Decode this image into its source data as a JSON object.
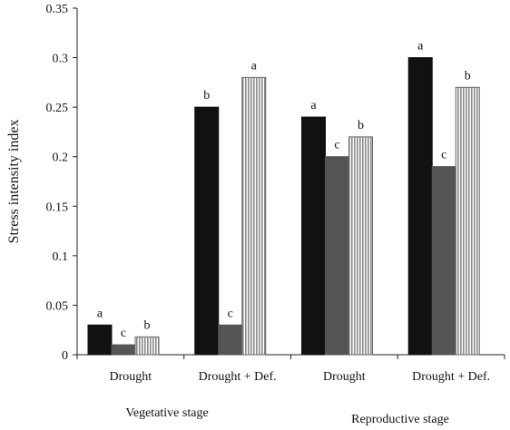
{
  "chart_data": {
    "type": "bar",
    "ylabel": "Stress  intensity index",
    "xlabel": "",
    "ylim": [
      0,
      0.35
    ],
    "yticks": [
      "0",
      "0.05",
      "0.1",
      "0.15",
      "0.2",
      "0.25",
      "0.3",
      "0.35"
    ],
    "grid": false,
    "legend": "none",
    "categories": [
      "Drought",
      "Drought + Def.",
      "Drought",
      "Drought + Def."
    ],
    "stage_labels": [
      "Vegetative stage",
      "Reproductive stage"
    ],
    "series": [
      {
        "values": [
          0.03,
          0.25,
          0.24,
          0.3
        ],
        "letters": [
          "a",
          "b",
          "a",
          "a"
        ],
        "fill": "#111111",
        "pattern": "solid"
      },
      {
        "values": [
          0.01,
          0.03,
          0.2,
          0.19
        ],
        "letters": [
          "c",
          "c",
          "c",
          "c"
        ],
        "fill": "#555555",
        "pattern": "solid"
      },
      {
        "values": [
          0.018,
          0.28,
          0.22,
          0.27
        ],
        "letters": [
          "b",
          "a",
          "b",
          "b"
        ],
        "fill": "#bbbbbb",
        "pattern": "vertical-stripes"
      }
    ]
  }
}
